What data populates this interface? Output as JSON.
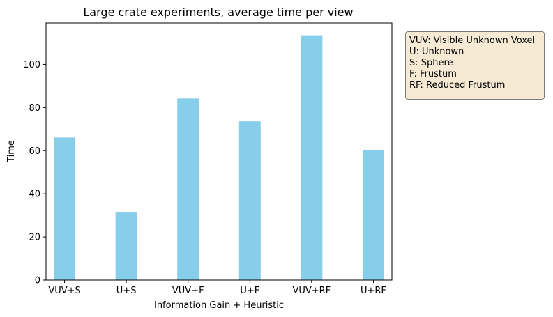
{
  "chart_data": {
    "type": "bar",
    "title": "Large crate experiments, average time per view",
    "xlabel": "Information Gain + Heuristic",
    "ylabel": "Time",
    "categories": [
      "VUV+S",
      "U+S",
      "VUV+F",
      "U+F",
      "VUV+RF",
      "U+RF"
    ],
    "values": [
      66.1,
      31.3,
      84.2,
      73.6,
      113.5,
      60.3
    ],
    "ylim": [
      0,
      119.2
    ],
    "yticks": [
      0,
      20,
      40,
      60,
      80,
      100
    ],
    "bar_color": "#87ceeb",
    "grid": false,
    "annotation": [
      "VUV: Visible Unknown Voxel",
      "U: Unknown",
      "S: Sphere",
      "F: Frustum",
      "RF: Reduced Frustum"
    ]
  }
}
